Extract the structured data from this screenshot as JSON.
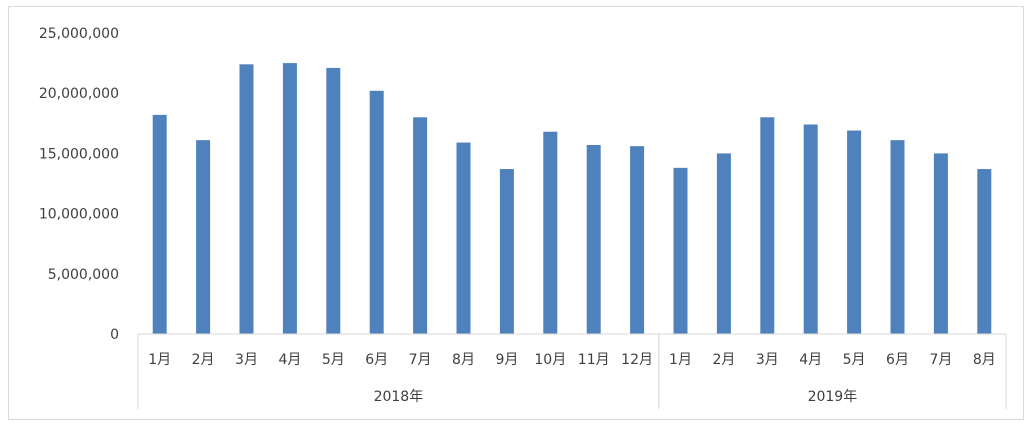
{
  "chart_data": {
    "type": "bar",
    "categories": [
      "1月",
      "2月",
      "3月",
      "4月",
      "5月",
      "6月",
      "7月",
      "8月",
      "9月",
      "10月",
      "11月",
      "12月",
      "1月",
      "2月",
      "3月",
      "4月",
      "5月",
      "6月",
      "7月",
      "8月"
    ],
    "groups": [
      {
        "label": "2018年",
        "count": 12
      },
      {
        "label": "2019年",
        "count": 8
      }
    ],
    "series": [
      {
        "values": [
          18200000,
          16100000,
          22400000,
          22500000,
          22100000,
          20200000,
          18000000,
          15900000,
          13700000,
          16800000,
          15700000,
          15600000,
          13800000,
          15000000,
          18000000,
          17400000,
          16900000,
          16100000,
          15000000,
          13700000
        ]
      }
    ],
    "ylim": [
      0,
      25000000
    ],
    "yticks": [
      0,
      5000000,
      10000000,
      15000000,
      20000000,
      25000000
    ],
    "ytick_labels": [
      "0",
      "5,000,000",
      "10,000,000",
      "15,000,000",
      "20,000,000",
      "25,000,000"
    ],
    "bar_color": "#4f81bd",
    "grid": false,
    "title": "",
    "xlabel": "",
    "ylabel": ""
  }
}
